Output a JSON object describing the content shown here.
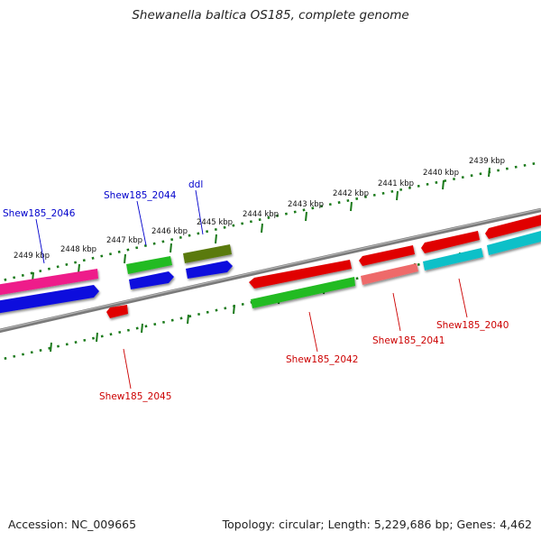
{
  "title": "Shewanella baltica OS185, complete genome",
  "footer": {
    "accession": "Accession: NC_009665",
    "summary": "Topology: circular; Length: 5,229,686 bp; Genes: 4,462"
  },
  "scale_labels": [
    "2439 kbp",
    "2440 kbp",
    "2441 kbp",
    "2442 kbp",
    "2443 kbp",
    "2444 kbp",
    "2445 kbp",
    "2446 kbp",
    "2447 kbp",
    "2448 kbp",
    "2449 kbp"
  ],
  "gene_labels_top": [
    "ddl",
    "Shew185_2044",
    "Shew185_2046"
  ],
  "gene_labels_bottom": [
    "Shew185_2040",
    "Shew185_2041",
    "Shew185_2042",
    "Shew185_2045"
  ],
  "colors": {
    "backbone": "#7a7a7a",
    "scale": "#1a7a1a",
    "red": "#e00000",
    "blue": "#1010dd",
    "green": "#22bb22",
    "olive": "#5a7a10",
    "magenta": "#ee1e8a",
    "cyan": "#10c0c8",
    "salmon": "#ee6a6a",
    "label_top": "#0000cc",
    "label_bottom": "#cc0000"
  }
}
